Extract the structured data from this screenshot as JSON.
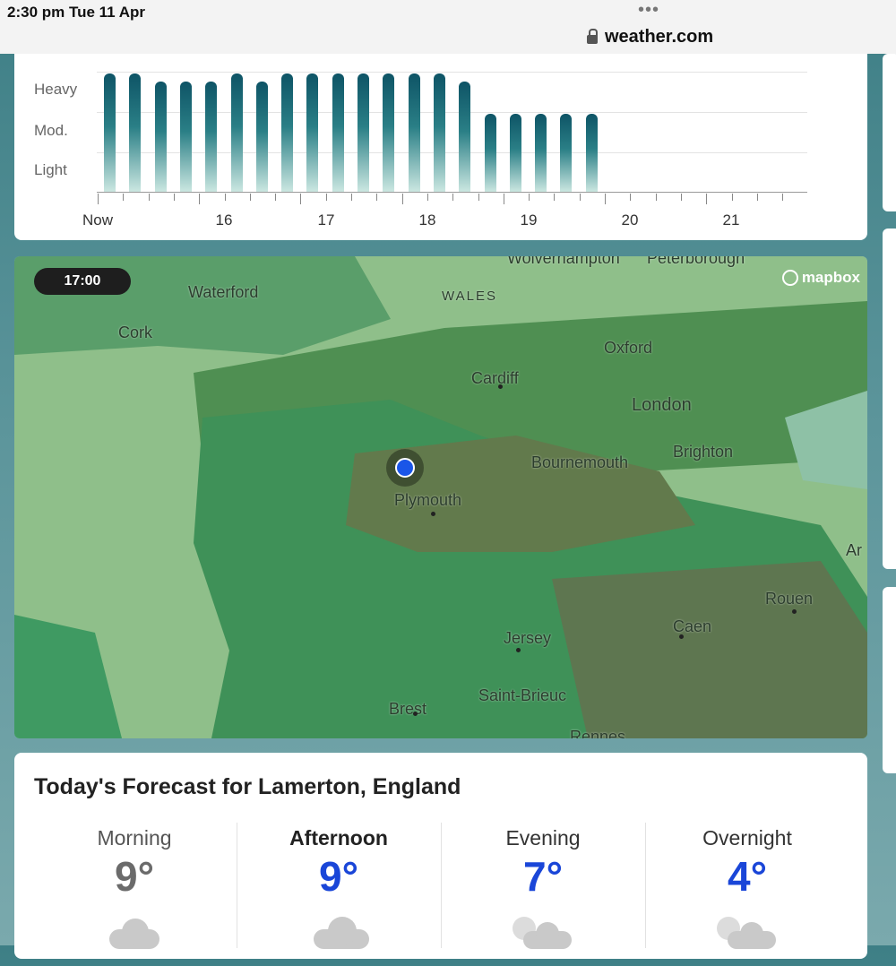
{
  "status_bar": {
    "time_date": "2:30 pm   Tue 11 Apr",
    "dots": "•••",
    "url": "weather.com"
  },
  "precip_chart": {
    "y_labels": [
      "Heavy",
      "Mod.",
      "Light"
    ],
    "x_labels": [
      "Now",
      "16",
      "17",
      "18",
      "19",
      "20",
      "21"
    ]
  },
  "chart_data": {
    "type": "bar",
    "yticks": [
      "Light",
      "Mod.",
      "Heavy"
    ],
    "values": [
      3,
      3,
      2.8,
      2.8,
      2.8,
      3,
      2.8,
      3,
      3,
      3,
      3,
      3,
      3,
      3,
      2.8,
      2,
      2,
      2,
      2,
      2
    ],
    "note_scale": "Light=1, Mod.=2, Heavy=3"
  },
  "map": {
    "time_label": "17:00",
    "attribution": "mapbox",
    "places": [
      "Wolverhampton",
      "Peterborough",
      "Waterford",
      "WALES",
      "Cork",
      "Oxford",
      "Cardiff",
      "London",
      "Brighton",
      "Bournemouth",
      "Plymouth",
      "Rouen",
      "Caen",
      "Jersey",
      "Saint-Brieuc",
      "Brest",
      "Rennes",
      "Ar"
    ]
  },
  "forecast": {
    "title": "Today's Forecast for Lamerton, England",
    "periods": [
      {
        "label": "Morning",
        "temp": "9°",
        "icon": "cloud-icon",
        "active": false
      },
      {
        "label": "Afternoon",
        "temp": "9°",
        "icon": "cloud-icon",
        "active": true
      },
      {
        "label": "Evening",
        "temp": "7°",
        "icon": "moon-cloud-icon",
        "active": false
      },
      {
        "label": "Overnight",
        "temp": "4°",
        "icon": "moon-cloud-icon",
        "active": false
      }
    ]
  },
  "colors": {
    "temp_active": "#1a46d8",
    "temp_past": "#6b6b6b",
    "bar": "#0e5466"
  }
}
